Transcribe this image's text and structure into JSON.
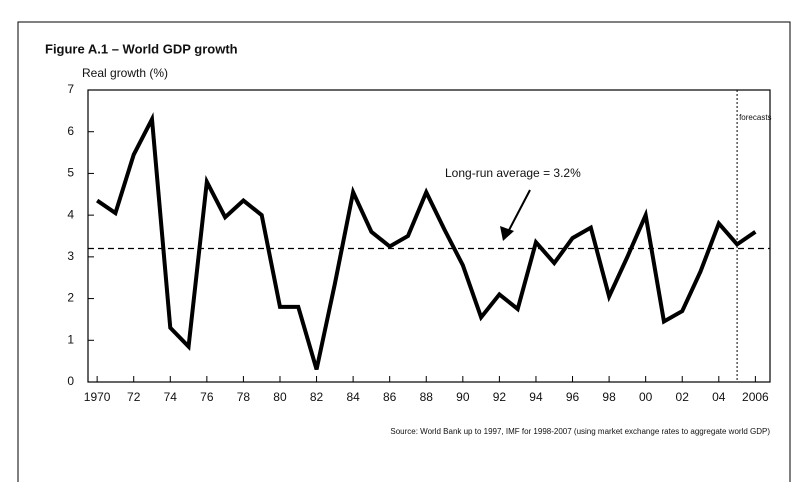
{
  "chart_data": {
    "type": "line",
    "title": "Figure A.1 – World GDP growth",
    "y_label": "Real growth (%)",
    "source": "Source: World Bank up to 1997, IMF for 1998-2007 (using market exchange rates to aggregate world GDP)",
    "annotations": [
      "Long-run average = 3.2%",
      "forecasts"
    ],
    "average": 3.2,
    "forecast_start": 2005,
    "x": [
      1970,
      1971,
      1972,
      1973,
      1974,
      1975,
      1976,
      1977,
      1978,
      1979,
      1980,
      1981,
      1982,
      1983,
      1984,
      1985,
      1986,
      1987,
      1988,
      1989,
      1990,
      1991,
      1992,
      1993,
      1994,
      1995,
      1996,
      1997,
      1998,
      1999,
      2000,
      2001,
      2002,
      2003,
      2004,
      2005,
      2006
    ],
    "series": [
      {
        "name": "Real growth",
        "color": "#000000",
        "values": [
          4.35,
          4.05,
          5.45,
          6.3,
          1.3,
          0.85,
          4.8,
          3.95,
          4.35,
          4.0,
          1.8,
          1.8,
          0.3,
          2.35,
          4.55,
          3.6,
          3.25,
          3.5,
          4.55,
          3.65,
          2.8,
          1.55,
          2.1,
          1.75,
          3.35,
          2.85,
          3.45,
          3.7,
          2.05,
          3.0,
          4.0,
          1.45,
          1.7,
          2.65,
          3.8,
          3.3,
          3.6
        ]
      }
    ],
    "xlim": [
      1969.5,
      2006.8
    ],
    "ylim": [
      0,
      7
    ],
    "yticks": [
      0,
      1,
      2,
      3,
      4,
      5,
      6,
      7
    ],
    "xticks": [
      {
        "value": 1970,
        "label": "1970"
      },
      {
        "value": 1972,
        "label": "72"
      },
      {
        "value": 1974,
        "label": "74"
      },
      {
        "value": 1976,
        "label": "76"
      },
      {
        "value": 1978,
        "label": "78"
      },
      {
        "value": 1980,
        "label": "80"
      },
      {
        "value": 1982,
        "label": "82"
      },
      {
        "value": 1984,
        "label": "84"
      },
      {
        "value": 1986,
        "label": "86"
      },
      {
        "value": 1988,
        "label": "88"
      },
      {
        "value": 1990,
        "label": "90"
      },
      {
        "value": 1992,
        "label": "92"
      },
      {
        "value": 1994,
        "label": "94"
      },
      {
        "value": 1996,
        "label": "96"
      },
      {
        "value": 1998,
        "label": "98"
      },
      {
        "value": 2000,
        "label": "00"
      },
      {
        "value": 2002,
        "label": "02"
      },
      {
        "value": 2004,
        "label": "04"
      },
      {
        "value": 2006,
        "label": "2006"
      }
    ],
    "grid": false
  }
}
